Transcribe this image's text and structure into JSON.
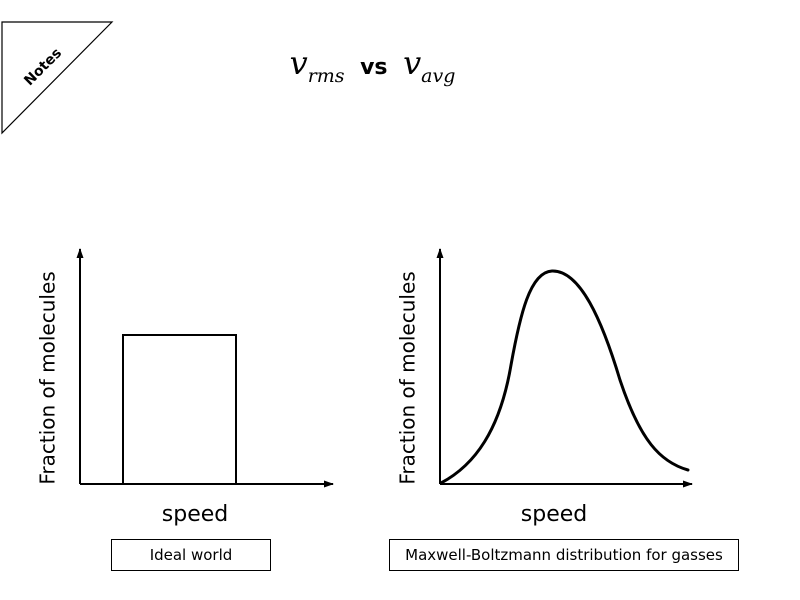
{
  "notes_tag": "Notes",
  "title": {
    "v1": "v",
    "v1_sub": "rms",
    "vs": "vs",
    "v2": "v",
    "v2_sub": "avg"
  },
  "left_diagram": {
    "ylabel": "Fraction of molecules",
    "xlabel": "speed",
    "caption": "Ideal world"
  },
  "right_diagram": {
    "ylabel": "Fraction of molecules",
    "xlabel": "speed",
    "caption": "Maxwell-Boltzmann distribution for  gasses"
  },
  "colors": {
    "line": "#000000",
    "background": "#ffffff"
  }
}
